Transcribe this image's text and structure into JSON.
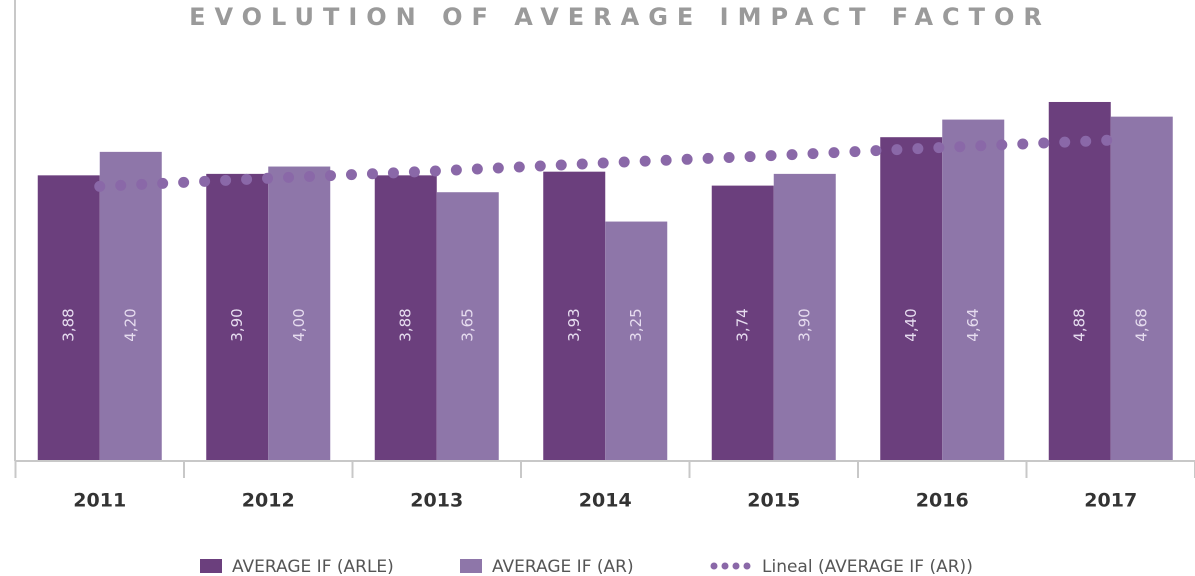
{
  "chart_data": {
    "type": "bar",
    "title": "EVOLUTION OF AVERAGE IMPACT FACTOR",
    "categories": [
      "2011",
      "2012",
      "2013",
      "2014",
      "2015",
      "2016",
      "2017"
    ],
    "ylim": [
      0,
      6.27
    ],
    "series": [
      {
        "name": "AVERAGE IF (ARLE)",
        "color": "#6b3f7d",
        "values": [
          3.88,
          3.9,
          3.88,
          3.93,
          3.74,
          4.4,
          4.88
        ],
        "value_labels": [
          "3,88",
          "3,90",
          "3,88",
          "3,93",
          "3,74",
          "4,40",
          "4,88"
        ]
      },
      {
        "name": "AVERAGE IF (AR)",
        "color": "#8e76a9",
        "values": [
          4.2,
          4.0,
          3.65,
          3.25,
          3.9,
          4.64,
          4.68
        ],
        "value_labels": [
          "4,20",
          "4,00",
          "3,65",
          "3,25",
          "3,90",
          "4,64",
          "4,68"
        ]
      },
      {
        "name": "Lineal (AVERAGE IF (AR))",
        "type": "line",
        "color": "#8a68a8",
        "values": [
          3.73,
          3.84,
          3.94,
          4.05,
          4.15,
          4.26,
          4.36
        ]
      }
    ]
  }
}
